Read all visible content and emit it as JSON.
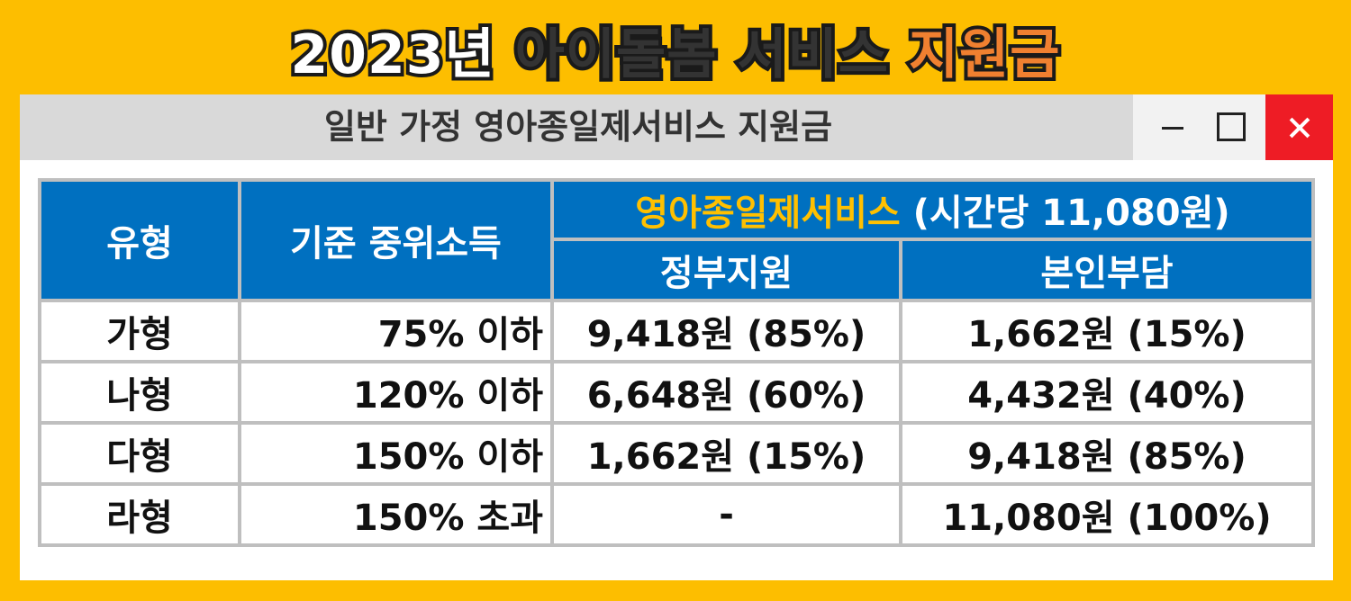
{
  "header": {
    "title": [
      "2023년",
      "아이돌봄 서비스",
      "지원금"
    ]
  },
  "window": {
    "title": "일반 가정 영아종일제서비스 지원금"
  },
  "table": {
    "headers": {
      "type": "유형",
      "income": "기준 중위소득",
      "service": "영아종일제서비스",
      "rate": "(시간당 11,080원)",
      "gov": "정부지원",
      "self": "본인부담"
    },
    "rows": [
      [
        "가형",
        "75% 이하",
        "9,418원 (85%)",
        "1,662원 (15%)"
      ],
      [
        "나형",
        "120% 이하",
        "6,648원 (60%)",
        "4,432원 (40%)"
      ],
      [
        "다형",
        "150% 이하",
        "1,662원 (15%)",
        "9,418원 (85%)"
      ],
      [
        "라형",
        "150% 초과",
        "-",
        "11,080원 (100%)"
      ]
    ]
  }
}
